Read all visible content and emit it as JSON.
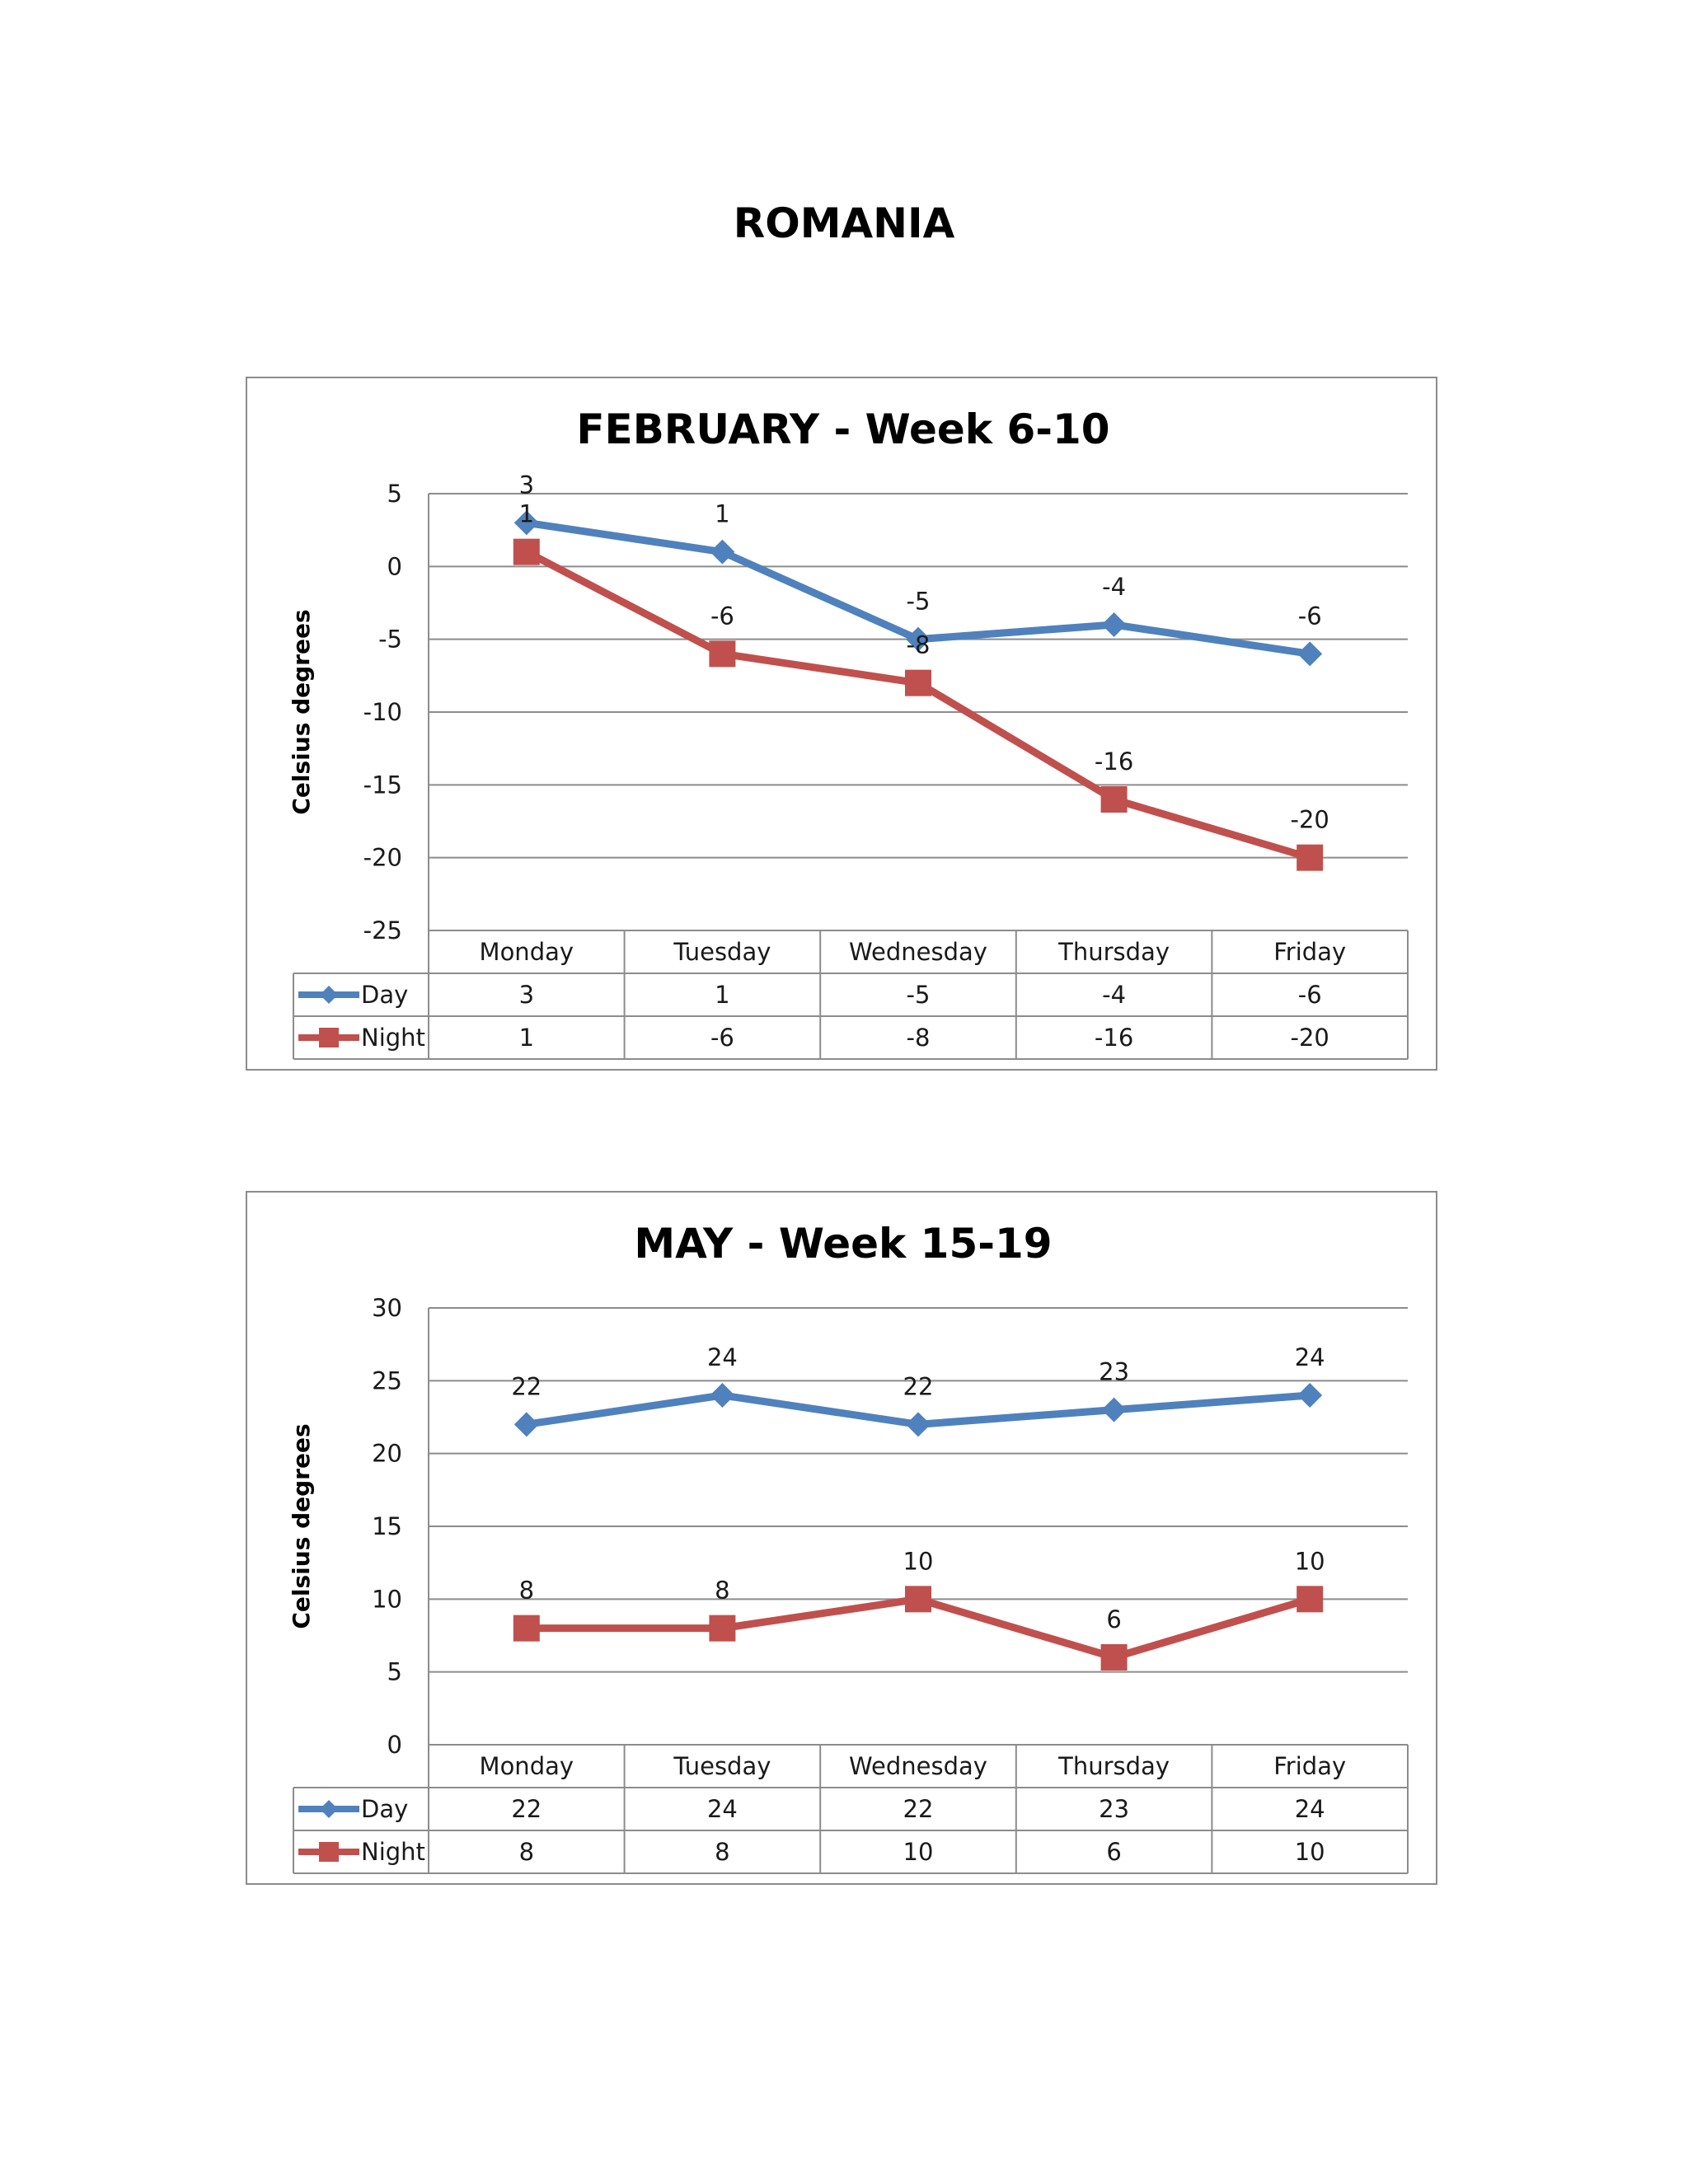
{
  "page": {
    "title": "ROMANIA"
  },
  "colors": {
    "day": "#4f81bd",
    "night": "#c0504d"
  },
  "chart_data": [
    {
      "type": "line",
      "title": "FEBRUARY - Week 6-10",
      "xlabel": "",
      "ylabel": "Celsius degrees",
      "categories": [
        "Monday",
        "Tuesday",
        "Wednesday",
        "Thursday",
        "Friday"
      ],
      "ylim": [
        -25,
        5
      ],
      "yticks": [
        5,
        0,
        -5,
        -10,
        -15,
        -20,
        -25
      ],
      "grid": true,
      "legend": "data-table",
      "series": [
        {
          "name": "Day",
          "marker": "diamond",
          "color": "#4f81bd",
          "values": [
            3,
            1,
            -5,
            -4,
            -6
          ]
        },
        {
          "name": "Night",
          "marker": "square",
          "color": "#c0504d",
          "values": [
            1,
            -6,
            -8,
            -16,
            -20
          ]
        }
      ]
    },
    {
      "type": "line",
      "title": "MAY - Week 15-19",
      "xlabel": "",
      "ylabel": "Celsius degrees",
      "categories": [
        "Monday",
        "Tuesday",
        "Wednesday",
        "Thursday",
        "Friday"
      ],
      "ylim": [
        0,
        30
      ],
      "yticks": [
        30,
        25,
        20,
        15,
        10,
        5,
        0
      ],
      "grid": true,
      "legend": "data-table",
      "series": [
        {
          "name": "Day",
          "marker": "diamond",
          "color": "#4f81bd",
          "values": [
            22,
            24,
            22,
            23,
            24
          ]
        },
        {
          "name": "Night",
          "marker": "square",
          "color": "#c0504d",
          "values": [
            8,
            8,
            10,
            6,
            10
          ]
        }
      ]
    }
  ]
}
